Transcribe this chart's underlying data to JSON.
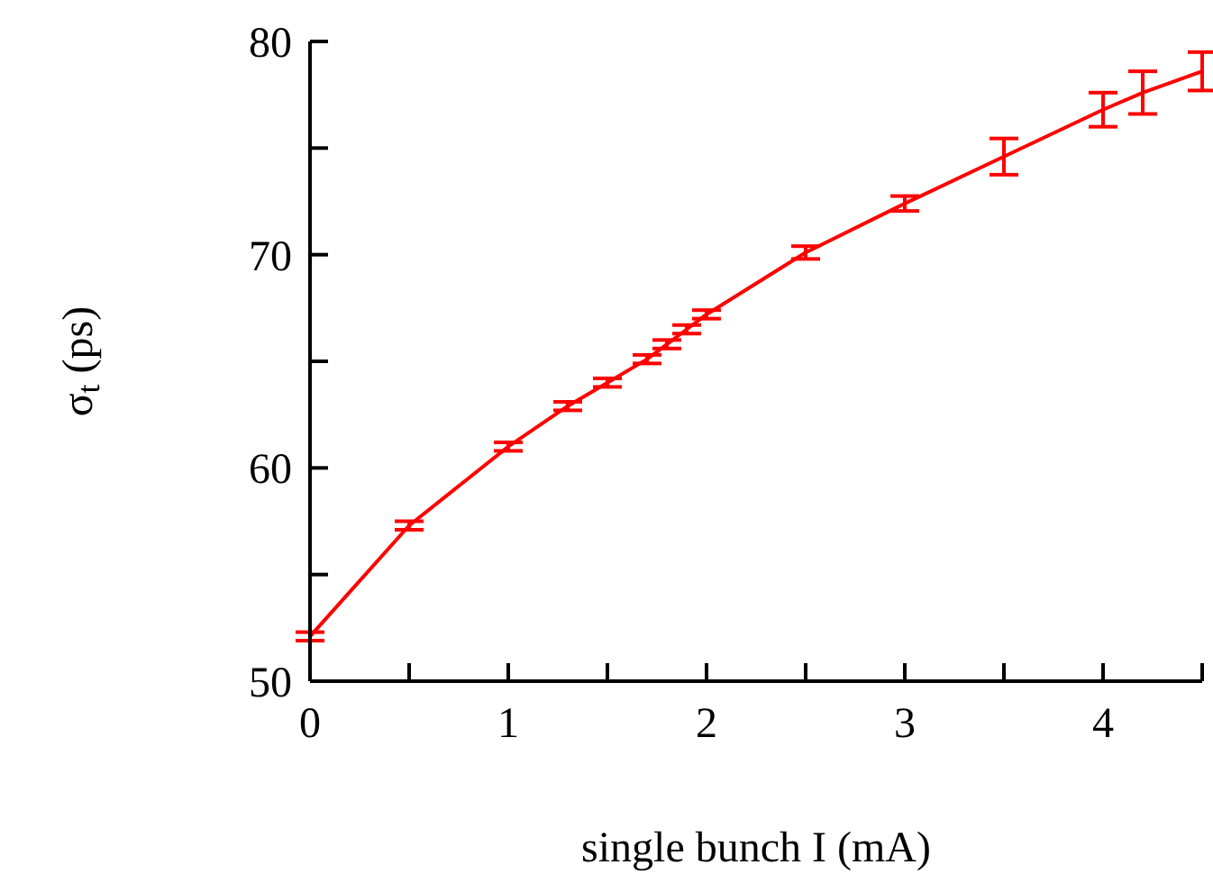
{
  "chart_data": {
    "type": "line",
    "xlabel": "single bunch I (mA)",
    "ylabel": "σ$_{t}$ (ps)",
    "x": [
      0,
      0.5,
      1,
      1.3,
      1.5,
      1.7,
      1.8,
      1.9,
      2,
      2.5,
      3,
      3.5,
      4,
      4.2,
      4.5
    ],
    "series": [
      {
        "color": "#ff0000",
        "values": [
          52.1,
          57.3,
          61.0,
          62.9,
          64.0,
          65.1,
          65.8,
          66.5,
          67.2,
          70.1,
          72.4,
          74.6,
          76.8,
          77.6,
          78.6
        ],
        "errors": [
          0.2,
          0.2,
          0.2,
          0.2,
          0.2,
          0.2,
          0.2,
          0.2,
          0.2,
          0.3,
          0.35,
          0.85,
          0.8,
          1.0,
          0.9
        ]
      }
    ],
    "xlim": [
      0,
      4.5
    ],
    "xticks": [
      0,
      {
        "value": 0.5,
        "label": null
      },
      1,
      {
        "value": 1.5,
        "label": null
      },
      2,
      {
        "value": 2.5,
        "label": null
      },
      3,
      {
        "value": 3.5,
        "label": null
      },
      4,
      {
        "value": 4.5,
        "label": null
      }
    ],
    "ylim": [
      50,
      80
    ],
    "yticks": [
      50,
      {
        "value": 55,
        "label": null
      },
      60,
      {
        "value": 65,
        "label": null
      },
      70,
      {
        "value": 75,
        "label": null
      },
      80
    ],
    "grid": false,
    "legend": false,
    "marker": "none",
    "line_style": "solid"
  }
}
